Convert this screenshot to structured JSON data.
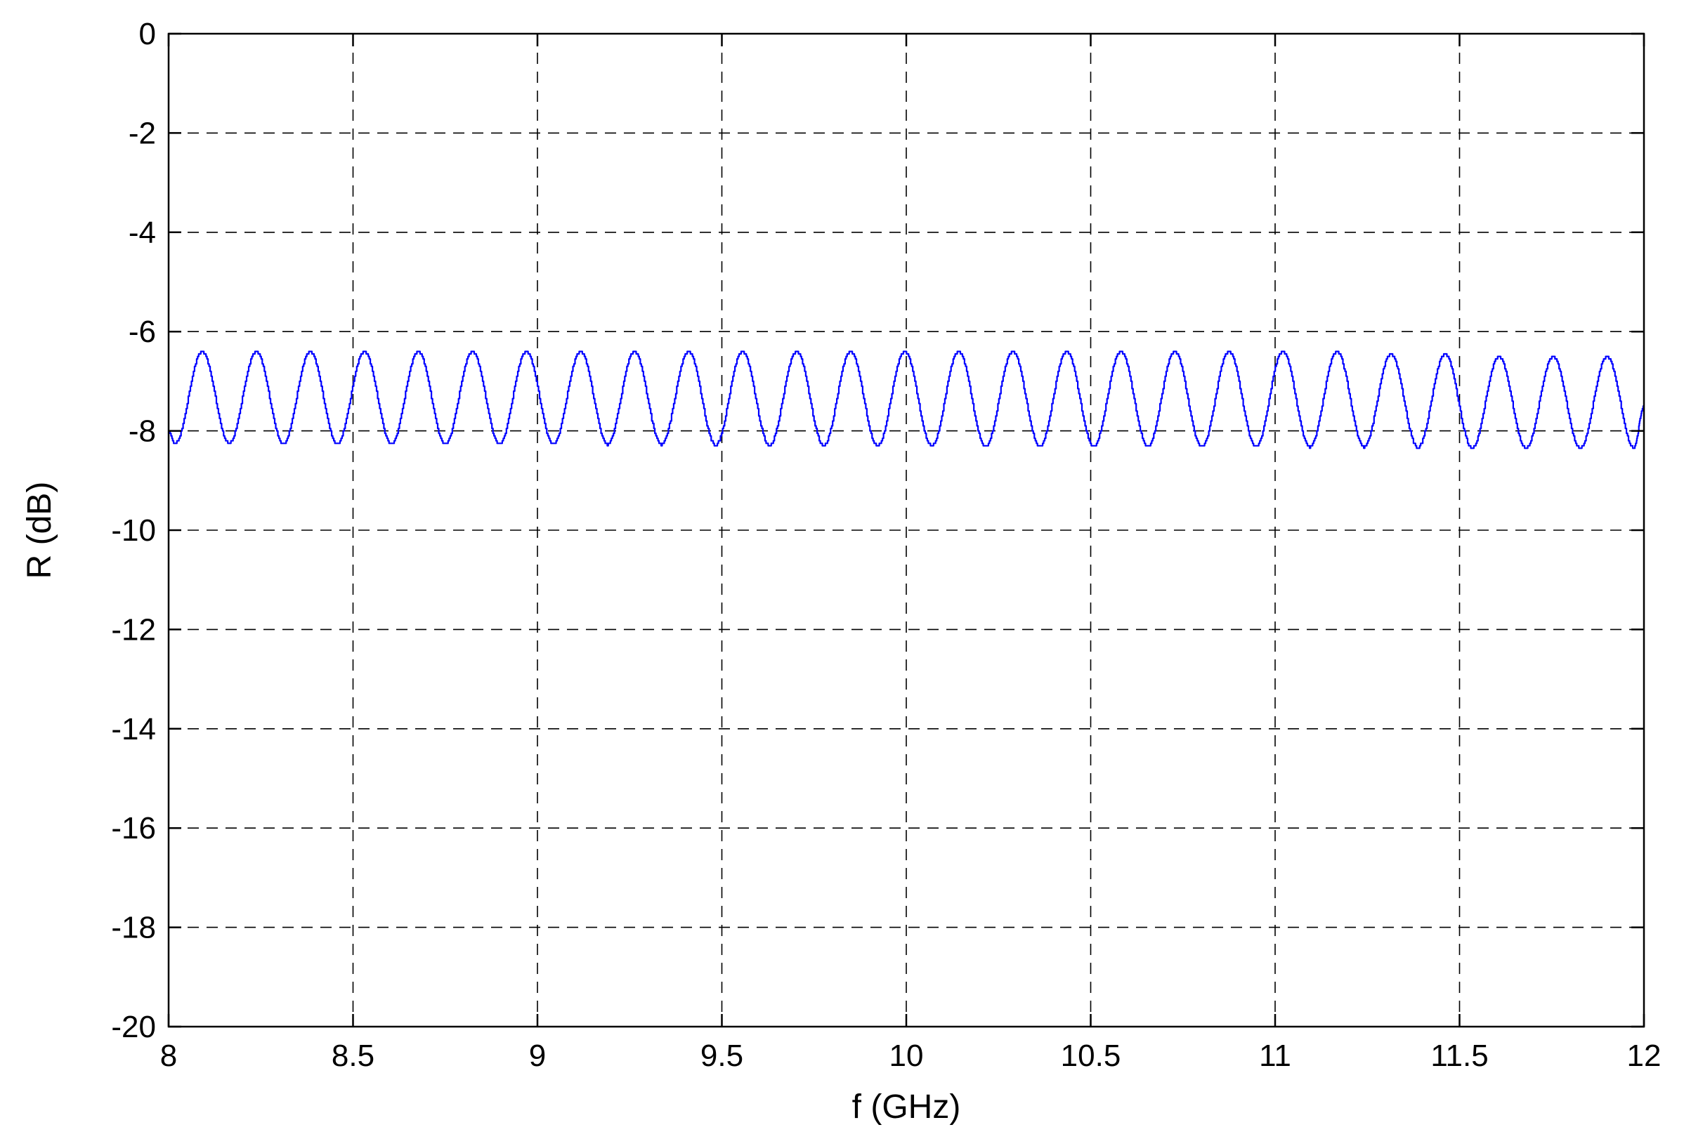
{
  "chart_data": {
    "type": "line",
    "title": "",
    "xlabel": "f (GHz)",
    "ylabel": "R (dB)",
    "xlim": [
      8,
      12
    ],
    "ylim": [
      -20,
      0
    ],
    "xticks": [
      8,
      8.5,
      9,
      9.5,
      10,
      10.5,
      11,
      11.5,
      12
    ],
    "xtick_labels": [
      "8",
      "8.5",
      "9",
      "9.5",
      "10",
      "10.5",
      "11",
      "11.5",
      "12"
    ],
    "yticks": [
      0,
      -2,
      -4,
      -6,
      -8,
      -10,
      -12,
      -14,
      -16,
      -18,
      -20
    ],
    "ytick_labels": [
      "0",
      "-2",
      "-4",
      "-6",
      "-8",
      "-10",
      "-12",
      "-14",
      "-16",
      "-18",
      "-20"
    ],
    "grid": true,
    "legend": "none",
    "series": [
      {
        "color": "#0000ff",
        "period_ghz": 0.1465,
        "peak_x": [
          8.09,
          8.237,
          8.383,
          8.53,
          8.676,
          8.823,
          8.969,
          9.116,
          9.262,
          9.409,
          9.555,
          9.702,
          9.848,
          9.995,
          10.141,
          10.288,
          10.434,
          10.581,
          10.727,
          10.874,
          11.02,
          11.167,
          11.313,
          11.46,
          11.606,
          11.753,
          11.899
        ],
        "peak_y": [
          -6.4,
          -6.4,
          -6.4,
          -6.4,
          -6.4,
          -6.4,
          -6.4,
          -6.4,
          -6.4,
          -6.4,
          -6.4,
          -6.4,
          -6.4,
          -6.4,
          -6.4,
          -6.4,
          -6.4,
          -6.4,
          -6.4,
          -6.4,
          -6.4,
          -6.4,
          -6.45,
          -6.45,
          -6.5,
          -6.5,
          -6.5
        ],
        "trough_y_start": -8.25,
        "trough_y_end": -8.35,
        "start_point": [
          8.0,
          -8.0
        ],
        "end_point": [
          12.0,
          -7.5
        ]
      }
    ]
  }
}
